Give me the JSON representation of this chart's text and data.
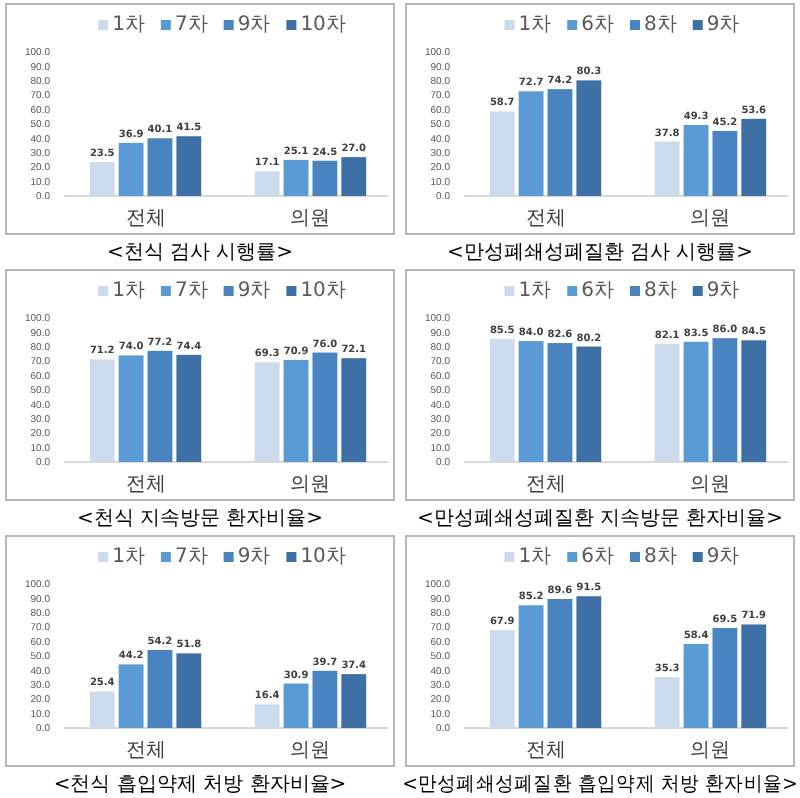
{
  "chart_data": [
    {
      "type": "bar",
      "title": "<천식 검사 시행률>",
      "categories": [
        "전체",
        "의원"
      ],
      "legend": "top",
      "ylim": [
        0,
        100
      ],
      "yticks": [
        {
          "value": 0,
          "label": "0.0"
        },
        {
          "value": 10,
          "label": "10.0"
        },
        {
          "value": 20,
          "label": "20.0"
        },
        {
          "value": 30,
          "label": "30.0"
        },
        {
          "value": 40,
          "label": "40.0"
        },
        {
          "value": 50,
          "label": "50.0"
        },
        {
          "value": 60,
          "label": "60.0"
        },
        {
          "value": 70,
          "label": "70.0"
        },
        {
          "value": 80,
          "label": "80.0"
        },
        {
          "value": 90,
          "label": "90.0"
        },
        {
          "value": 100,
          "label": "100.0"
        }
      ],
      "series": [
        {
          "name": "1차",
          "color": "#ccdaee",
          "values": [
            23.5,
            17.1
          ],
          "value_labels": [
            "23.5",
            "17.1"
          ]
        },
        {
          "name": "7차",
          "color": "#5b9bd5",
          "values": [
            36.9,
            25.1
          ],
          "value_labels": [
            "36.9",
            "25.1"
          ]
        },
        {
          "name": "9차",
          "color": "#4a84c0",
          "values": [
            40.1,
            24.5
          ],
          "value_labels": [
            "40.1",
            "24.5"
          ]
        },
        {
          "name": "10차",
          "color": "#3e70a6",
          "values": [
            41.5,
            27.0
          ],
          "value_labels": [
            "41.5",
            "27.0"
          ]
        }
      ]
    },
    {
      "type": "bar",
      "title": "<만성폐쇄성폐질환 검사 시행률>",
      "categories": [
        "전체",
        "의원"
      ],
      "legend": "top",
      "ylim": [
        0,
        100
      ],
      "yticks": [
        {
          "value": 0,
          "label": "0.0"
        },
        {
          "value": 10,
          "label": "10.0"
        },
        {
          "value": 20,
          "label": "20.0"
        },
        {
          "value": 30,
          "label": "30.0"
        },
        {
          "value": 40,
          "label": "40.0"
        },
        {
          "value": 50,
          "label": "50.0"
        },
        {
          "value": 60,
          "label": "60.0"
        },
        {
          "value": 70,
          "label": "70.0"
        },
        {
          "value": 80,
          "label": "80.0"
        },
        {
          "value": 90,
          "label": "90.0"
        },
        {
          "value": 100,
          "label": "100.0"
        }
      ],
      "series": [
        {
          "name": "1차",
          "color": "#ccdaee",
          "values": [
            58.7,
            37.8
          ],
          "value_labels": [
            "58.7",
            "37.8"
          ]
        },
        {
          "name": "6차",
          "color": "#5b9bd5",
          "values": [
            72.7,
            49.3
          ],
          "value_labels": [
            "72.7",
            "49.3"
          ]
        },
        {
          "name": "8차",
          "color": "#4a84c0",
          "values": [
            74.2,
            45.2
          ],
          "value_labels": [
            "74.2",
            "45.2"
          ]
        },
        {
          "name": "9차",
          "color": "#3e70a6",
          "values": [
            80.3,
            53.6
          ],
          "value_labels": [
            "80.3",
            "53.6"
          ]
        }
      ]
    },
    {
      "type": "bar",
      "title": "<천식 지속방문 환자비율>",
      "categories": [
        "전체",
        "의원"
      ],
      "legend": "top",
      "ylim": [
        0,
        100
      ],
      "yticks": [
        {
          "value": 0,
          "label": "0.0"
        },
        {
          "value": 10,
          "label": "10.0"
        },
        {
          "value": 20,
          "label": "20.0"
        },
        {
          "value": 30,
          "label": "30.0"
        },
        {
          "value": 40,
          "label": "40.0"
        },
        {
          "value": 50,
          "label": "50.0"
        },
        {
          "value": 60,
          "label": "60.0"
        },
        {
          "value": 70,
          "label": "70.0"
        },
        {
          "value": 80,
          "label": "80.0"
        },
        {
          "value": 90,
          "label": "90.0"
        },
        {
          "value": 100,
          "label": "100.0"
        }
      ],
      "series": [
        {
          "name": "1차",
          "color": "#ccdaee",
          "values": [
            71.2,
            69.3
          ],
          "value_labels": [
            "71.2",
            "69.3"
          ]
        },
        {
          "name": "7차",
          "color": "#5b9bd5",
          "values": [
            74.0,
            70.9
          ],
          "value_labels": [
            "74.0",
            "70.9"
          ]
        },
        {
          "name": "9차",
          "color": "#4a84c0",
          "values": [
            77.2,
            76.0
          ],
          "value_labels": [
            "77.2",
            "76.0"
          ]
        },
        {
          "name": "10차",
          "color": "#3e70a6",
          "values": [
            74.4,
            72.1
          ],
          "value_labels": [
            "74.4",
            "72.1"
          ]
        }
      ]
    },
    {
      "type": "bar",
      "title": "<만성폐쇄성폐질환 지속방문 환자비율>",
      "categories": [
        "전체",
        "의원"
      ],
      "legend": "top",
      "ylim": [
        0,
        100
      ],
      "yticks": [
        {
          "value": 0,
          "label": "0.0"
        },
        {
          "value": 10,
          "label": "10.0"
        },
        {
          "value": 20,
          "label": "20.0"
        },
        {
          "value": 30,
          "label": "30.0"
        },
        {
          "value": 40,
          "label": "40.0"
        },
        {
          "value": 50,
          "label": "50.0"
        },
        {
          "value": 60,
          "label": "60.0"
        },
        {
          "value": 70,
          "label": "70.0"
        },
        {
          "value": 80,
          "label": "80.0"
        },
        {
          "value": 90,
          "label": "90.0"
        },
        {
          "value": 100,
          "label": "100.0"
        }
      ],
      "series": [
        {
          "name": "1차",
          "color": "#ccdaee",
          "values": [
            85.5,
            82.1
          ],
          "value_labels": [
            "85.5",
            "82.1"
          ]
        },
        {
          "name": "6차",
          "color": "#5b9bd5",
          "values": [
            84.0,
            83.5
          ],
          "value_labels": [
            "84.0",
            "83.5"
          ]
        },
        {
          "name": "8차",
          "color": "#4a84c0",
          "values": [
            82.6,
            86.0
          ],
          "value_labels": [
            "82.6",
            "86.0"
          ]
        },
        {
          "name": "9차",
          "color": "#3e70a6",
          "values": [
            80.2,
            84.5
          ],
          "value_labels": [
            "80.2",
            "84.5"
          ]
        }
      ]
    },
    {
      "type": "bar",
      "title": "<천식 흡입약제 처방 환자비율>",
      "categories": [
        "전체",
        "의원"
      ],
      "legend": "top",
      "ylim": [
        0,
        100
      ],
      "yticks": [
        {
          "value": 0,
          "label": "0.0"
        },
        {
          "value": 10,
          "label": "10.0"
        },
        {
          "value": 20,
          "label": "20.0"
        },
        {
          "value": 30,
          "label": "30.0"
        },
        {
          "value": 40,
          "label": "40.0"
        },
        {
          "value": 50,
          "label": "50.0"
        },
        {
          "value": 60,
          "label": "60.0"
        },
        {
          "value": 70,
          "label": "70.0"
        },
        {
          "value": 80,
          "label": "80.0"
        },
        {
          "value": 90,
          "label": "90.0"
        },
        {
          "value": 100,
          "label": "100.0"
        }
      ],
      "series": [
        {
          "name": "1차",
          "color": "#ccdaee",
          "values": [
            25.4,
            16.4
          ],
          "value_labels": [
            "25.4",
            "16.4"
          ]
        },
        {
          "name": "7차",
          "color": "#5b9bd5",
          "values": [
            44.2,
            30.9
          ],
          "value_labels": [
            "44.2",
            "30.9"
          ]
        },
        {
          "name": "9차",
          "color": "#4a84c0",
          "values": [
            54.2,
            39.7
          ],
          "value_labels": [
            "54.2",
            "39.7"
          ]
        },
        {
          "name": "10차",
          "color": "#3e70a6",
          "values": [
            51.8,
            37.4
          ],
          "value_labels": [
            "51.8",
            "37.4"
          ]
        }
      ]
    },
    {
      "type": "bar",
      "title": "<만성폐쇄성폐질환 흡입약제 처방 환자비율>",
      "categories": [
        "전체",
        "의원"
      ],
      "legend": "top",
      "ylim": [
        0,
        100
      ],
      "yticks": [
        {
          "value": 0,
          "label": "0.0"
        },
        {
          "value": 10,
          "label": "10.0"
        },
        {
          "value": 20,
          "label": "20.0"
        },
        {
          "value": 30,
          "label": "30.0"
        },
        {
          "value": 40,
          "label": "40.0"
        },
        {
          "value": 50,
          "label": "50.0"
        },
        {
          "value": 60,
          "label": "60.0"
        },
        {
          "value": 70,
          "label": "70.0"
        },
        {
          "value": 80,
          "label": "80.0"
        },
        {
          "value": 90,
          "label": "90.0"
        },
        {
          "value": 100,
          "label": "100.0"
        }
      ],
      "series": [
        {
          "name": "1차",
          "color": "#ccdaee",
          "values": [
            67.9,
            35.3
          ],
          "value_labels": [
            "67.9",
            "35.3"
          ]
        },
        {
          "name": "6차",
          "color": "#5b9bd5",
          "values": [
            85.2,
            58.4
          ],
          "value_labels": [
            "85.2",
            "58.4"
          ]
        },
        {
          "name": "8차",
          "color": "#4a84c0",
          "values": [
            89.6,
            69.5
          ],
          "value_labels": [
            "89.6",
            "69.5"
          ]
        },
        {
          "name": "9차",
          "color": "#3e70a6",
          "values": [
            91.5,
            71.9
          ],
          "value_labels": [
            "91.5",
            "71.9"
          ]
        }
      ]
    }
  ]
}
